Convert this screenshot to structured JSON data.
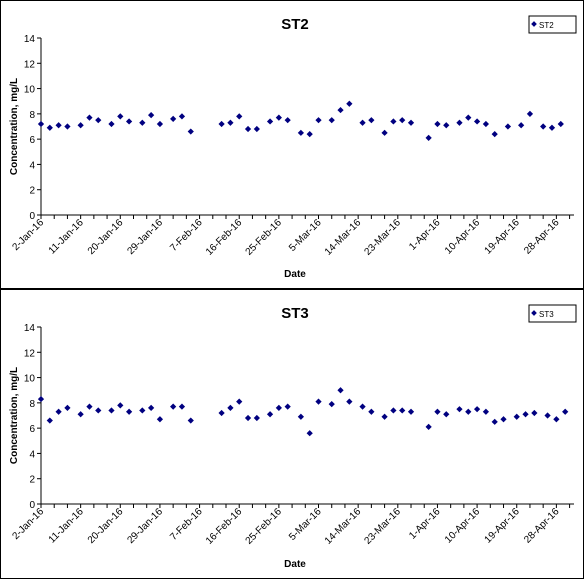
{
  "charts": [
    {
      "title": "ST2",
      "legend_label": "ST2",
      "ylabel": "Concentration, mg/L",
      "xlabel": "Date"
    },
    {
      "title": "ST3",
      "legend_label": "ST3",
      "ylabel": "Concentration, mg/L",
      "xlabel": "Date"
    }
  ],
  "chart_data": [
    {
      "type": "scatter",
      "title": "ST2",
      "xlabel": "Date",
      "ylabel": "Concentration, mg/L",
      "xlim": [
        "2016-01-02",
        "2016-05-02"
      ],
      "ylim": [
        0,
        14
      ],
      "y_ticks": [
        0,
        2,
        4,
        6,
        8,
        10,
        12,
        14
      ],
      "x_tick_labels": [
        "2-Jan-16",
        "11-Jan-16",
        "20-Jan-16",
        "29-Jan-16",
        "7-Feb-16",
        "16-Feb-16",
        "25-Feb-16",
        "5-Mar-16",
        "14-Mar-16",
        "23-Mar-16",
        "1-Apr-16",
        "10-Apr-16",
        "19-Apr-16",
        "28-Apr-16"
      ],
      "x_tick_dates": [
        "2016-01-02",
        "2016-01-11",
        "2016-01-20",
        "2016-01-29",
        "2016-02-07",
        "2016-02-16",
        "2016-02-25",
        "2016-03-05",
        "2016-03-14",
        "2016-03-23",
        "2016-04-01",
        "2016-04-10",
        "2016-04-19",
        "2016-04-28"
      ],
      "grid": false,
      "legend_position": "top-right",
      "marker_color": "#000080",
      "series": [
        {
          "name": "ST2",
          "x": [
            "2016-01-02",
            "2016-01-04",
            "2016-01-06",
            "2016-01-08",
            "2016-01-11",
            "2016-01-13",
            "2016-01-15",
            "2016-01-18",
            "2016-01-20",
            "2016-01-22",
            "2016-01-25",
            "2016-01-27",
            "2016-01-29",
            "2016-02-01",
            "2016-02-03",
            "2016-02-05",
            "2016-02-12",
            "2016-02-14",
            "2016-02-16",
            "2016-02-18",
            "2016-02-20",
            "2016-02-23",
            "2016-02-25",
            "2016-02-27",
            "2016-03-01",
            "2016-03-03",
            "2016-03-05",
            "2016-03-08",
            "2016-03-10",
            "2016-03-12",
            "2016-03-15",
            "2016-03-17",
            "2016-03-20",
            "2016-03-22",
            "2016-03-24",
            "2016-03-26",
            "2016-03-30",
            "2016-04-01",
            "2016-04-03",
            "2016-04-06",
            "2016-04-08",
            "2016-04-10",
            "2016-04-12",
            "2016-04-14",
            "2016-04-17",
            "2016-04-20",
            "2016-04-22",
            "2016-04-25",
            "2016-04-27",
            "2016-04-29"
          ],
          "y": [
            7.2,
            6.9,
            7.1,
            7.0,
            7.1,
            7.7,
            7.5,
            7.2,
            7.8,
            7.4,
            7.3,
            7.9,
            7.2,
            7.6,
            7.8,
            6.6,
            7.2,
            7.3,
            7.8,
            6.8,
            6.8,
            7.4,
            7.7,
            7.5,
            6.5,
            6.4,
            7.5,
            7.5,
            8.3,
            8.8,
            7.3,
            7.5,
            6.5,
            7.4,
            7.5,
            7.3,
            6.1,
            7.2,
            7.1,
            7.3,
            7.7,
            7.4,
            7.2,
            6.4,
            7.0,
            7.1,
            8.0,
            7.0,
            6.9,
            7.2
          ]
        }
      ]
    },
    {
      "type": "scatter",
      "title": "ST3",
      "xlabel": "Date",
      "ylabel": "Concentration, mg/L",
      "xlim": [
        "2016-01-02",
        "2016-05-02"
      ],
      "ylim": [
        0,
        14
      ],
      "y_ticks": [
        0,
        2,
        4,
        6,
        8,
        10,
        12,
        14
      ],
      "x_tick_labels": [
        "2-Jan-16",
        "11-Jan-16",
        "20-Jan-16",
        "29-Jan-16",
        "7-Feb-16",
        "16-Feb-16",
        "25-Feb-16",
        "5-Mar-16",
        "14-Mar-16",
        "23-Mar-16",
        "1-Apr-16",
        "10-Apr-16",
        "19-Apr-16",
        "28-Apr-16"
      ],
      "x_tick_dates": [
        "2016-01-02",
        "2016-01-11",
        "2016-01-20",
        "2016-01-29",
        "2016-02-07",
        "2016-02-16",
        "2016-02-25",
        "2016-03-05",
        "2016-03-14",
        "2016-03-23",
        "2016-04-01",
        "2016-04-10",
        "2016-04-19",
        "2016-04-28"
      ],
      "grid": false,
      "legend_position": "top-right",
      "marker_color": "#000080",
      "series": [
        {
          "name": "ST3",
          "x": [
            "2016-01-02",
            "2016-01-04",
            "2016-01-06",
            "2016-01-08",
            "2016-01-11",
            "2016-01-13",
            "2016-01-15",
            "2016-01-18",
            "2016-01-20",
            "2016-01-22",
            "2016-01-25",
            "2016-01-27",
            "2016-01-29",
            "2016-02-01",
            "2016-02-03",
            "2016-02-05",
            "2016-02-12",
            "2016-02-14",
            "2016-02-16",
            "2016-02-18",
            "2016-02-20",
            "2016-02-23",
            "2016-02-25",
            "2016-02-27",
            "2016-03-01",
            "2016-03-03",
            "2016-03-05",
            "2016-03-08",
            "2016-03-10",
            "2016-03-12",
            "2016-03-15",
            "2016-03-17",
            "2016-03-20",
            "2016-03-22",
            "2016-03-24",
            "2016-03-26",
            "2016-03-30",
            "2016-04-01",
            "2016-04-03",
            "2016-04-06",
            "2016-04-08",
            "2016-04-10",
            "2016-04-12",
            "2016-04-14",
            "2016-04-16",
            "2016-04-19",
            "2016-04-21",
            "2016-04-23",
            "2016-04-26",
            "2016-04-28",
            "2016-04-30"
          ],
          "y": [
            8.3,
            6.6,
            7.3,
            7.6,
            7.1,
            7.7,
            7.4,
            7.4,
            7.8,
            7.3,
            7.4,
            7.6,
            6.7,
            7.7,
            7.7,
            6.6,
            7.2,
            7.6,
            8.1,
            6.8,
            6.8,
            7.1,
            7.6,
            7.7,
            6.9,
            5.6,
            8.1,
            7.9,
            9.0,
            8.1,
            7.7,
            7.3,
            6.9,
            7.4,
            7.4,
            7.3,
            6.1,
            7.3,
            7.1,
            7.5,
            7.3,
            7.5,
            7.3,
            6.5,
            6.7,
            6.9,
            7.1,
            7.2,
            7.0,
            6.7,
            7.3
          ]
        }
      ]
    }
  ]
}
